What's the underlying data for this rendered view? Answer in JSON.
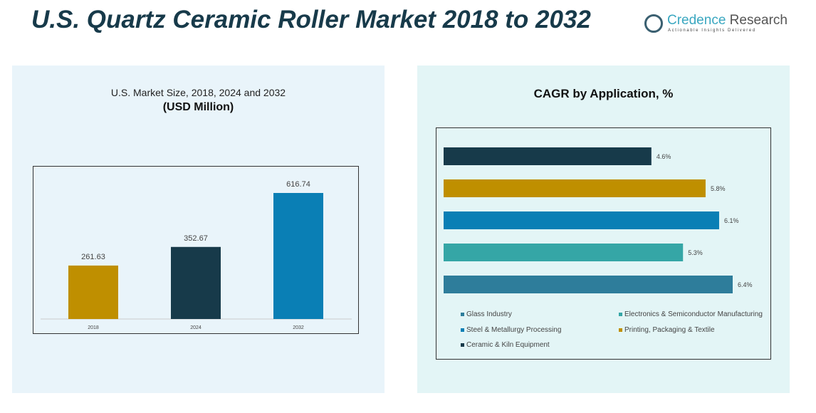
{
  "title": "U.S. Quartz Ceramic Roller Market 2018 to 2032",
  "logo": {
    "name_part1": "Credence",
    "name_part2": " Research",
    "tagline": "Actionable Insights Delivered"
  },
  "chart_data": [
    {
      "type": "bar",
      "title": "U.S. Market Size, 2018, 2024 and 2032",
      "subtitle": "(USD Million)",
      "categories": [
        "2018",
        "2024",
        "2032"
      ],
      "values": [
        261.63,
        352.67,
        616.74
      ],
      "labels": [
        "261.63",
        "352.67",
        "616.74"
      ],
      "colors": [
        "#bf8f00",
        "#173a4a",
        "#0a7fb5"
      ],
      "ylim": [
        0,
        616.74
      ]
    },
    {
      "type": "bar",
      "orientation": "horizontal",
      "title": "CAGR by Application, %",
      "categories": [
        "Ceramic & Kiln Equipment",
        "Printing, Packaging & Textile",
        "Steel & Metallurgy Processing",
        "Electronics & Semiconductor Manufacturing",
        "Glass Industry"
      ],
      "values": [
        4.6,
        5.8,
        6.1,
        5.3,
        6.4
      ],
      "labels": [
        "4.6%",
        "5.8%",
        "6.1%",
        "5.3%",
        "6.4%"
      ],
      "colors": [
        "#173a4a",
        "#bf8f00",
        "#0a7fb5",
        "#35a6a6",
        "#2e7d9b"
      ],
      "xlim": [
        0,
        6.4
      ],
      "legend": [
        "Glass Industry",
        "Electronics & Semiconductor Manufacturing",
        "Steel & Metallurgy Processing",
        "Printing, Packaging & Textile",
        "Ceramic & Kiln Equipment"
      ],
      "legend_colors": [
        "#2e7d9b",
        "#35a6a6",
        "#0a7fb5",
        "#bf8f00",
        "#173a4a"
      ],
      "legend_position": "bottom"
    }
  ]
}
